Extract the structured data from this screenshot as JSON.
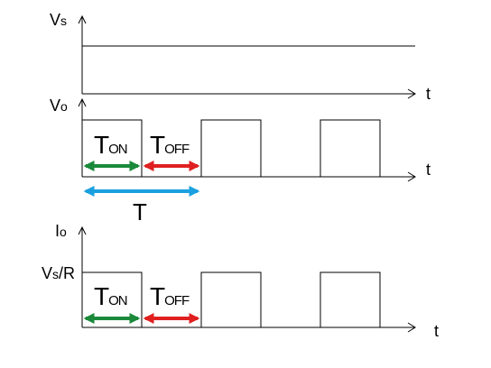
{
  "labels": {
    "vs": "Vs",
    "vo": "Vo",
    "io": "Io",
    "vs_over_r": "Vs/R",
    "t_axis": "t",
    "ton": "TON",
    "toff": "TOFF",
    "period": "T"
  },
  "colors": {
    "ton_arrow": "#1a8a3a",
    "toff_arrow": "#e02020",
    "period_arrow": "#1aa0e0"
  }
}
